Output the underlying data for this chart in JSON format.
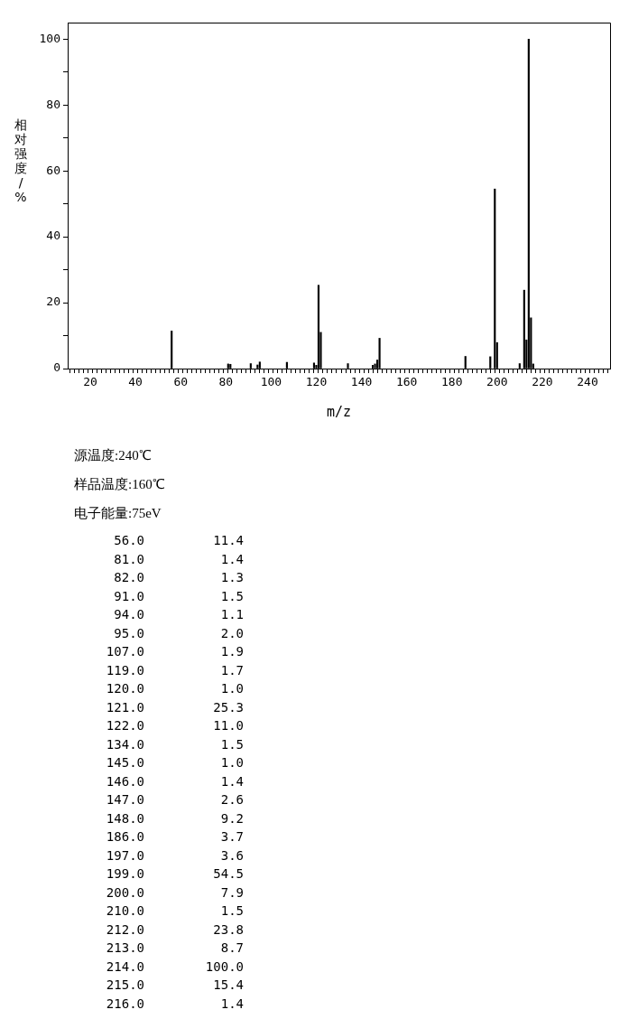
{
  "chart_data": [
    {
      "type": "bar",
      "xlabel": "m/z",
      "ylabel": "相对强度/%",
      "annotations": [
        "源温度:240℃",
        "样品温度:160℃",
        "电子能量:75eV"
      ],
      "x": [
        56,
        81,
        82,
        91,
        94,
        95,
        107,
        119,
        120,
        121,
        122,
        134,
        145,
        146,
        147,
        148,
        186,
        197,
        199,
        200,
        210,
        212,
        213,
        214,
        215,
        216
      ],
      "values": [
        11.4,
        1.4,
        1.3,
        1.5,
        1.1,
        2.0,
        1.9,
        1.7,
        1.0,
        25.3,
        11.0,
        1.5,
        1.0,
        1.4,
        2.6,
        9.2,
        3.7,
        3.6,
        54.5,
        7.9,
        1.5,
        23.8,
        8.7,
        100.0,
        15.4,
        1.4
      ],
      "color": "#000000",
      "grid": false,
      "legend": false,
      "xlim": [
        10,
        250
      ],
      "ylim": [
        0,
        105
      ],
      "xticks": [
        {
          "value": 10,
          "label": null
        },
        {
          "value": 12,
          "label": null
        },
        {
          "value": 14,
          "label": null
        },
        {
          "value": 16,
          "label": null
        },
        {
          "value": 18,
          "label": null
        },
        20,
        {
          "value": 22,
          "label": null
        },
        {
          "value": 24,
          "label": null
        },
        {
          "value": 26,
          "label": null
        },
        {
          "value": 28,
          "label": null
        },
        {
          "value": 30,
          "label": null
        },
        {
          "value": 32,
          "label": null
        },
        {
          "value": 34,
          "label": null
        },
        {
          "value": 36,
          "label": null
        },
        {
          "value": 38,
          "label": null
        },
        40,
        {
          "value": 42,
          "label": null
        },
        {
          "value": 44,
          "label": null
        },
        {
          "value": 46,
          "label": null
        },
        {
          "value": 48,
          "label": null
        },
        {
          "value": 50,
          "label": null
        },
        {
          "value": 52,
          "label": null
        },
        {
          "value": 54,
          "label": null
        },
        {
          "value": 56,
          "label": null
        },
        {
          "value": 58,
          "label": null
        },
        60,
        {
          "value": 62,
          "label": null
        },
        {
          "value": 64,
          "label": null
        },
        {
          "value": 66,
          "label": null
        },
        {
          "value": 68,
          "label": null
        },
        {
          "value": 70,
          "label": null
        },
        {
          "value": 72,
          "label": null
        },
        {
          "value": 74,
          "label": null
        },
        {
          "value": 76,
          "label": null
        },
        {
          "value": 78,
          "label": null
        },
        80,
        {
          "value": 82,
          "label": null
        },
        {
          "value": 84,
          "label": null
        },
        {
          "value": 86,
          "label": null
        },
        {
          "value": 88,
          "label": null
        },
        {
          "value": 90,
          "label": null
        },
        {
          "value": 92,
          "label": null
        },
        {
          "value": 94,
          "label": null
        },
        {
          "value": 96,
          "label": null
        },
        {
          "value": 98,
          "label": null
        },
        100,
        {
          "value": 102,
          "label": null
        },
        {
          "value": 104,
          "label": null
        },
        {
          "value": 106,
          "label": null
        },
        {
          "value": 108,
          "label": null
        },
        {
          "value": 110,
          "label": null
        },
        {
          "value": 112,
          "label": null
        },
        {
          "value": 114,
          "label": null
        },
        {
          "value": 116,
          "label": null
        },
        {
          "value": 118,
          "label": null
        },
        120,
        {
          "value": 122,
          "label": null
        },
        {
          "value": 124,
          "label": null
        },
        {
          "value": 126,
          "label": null
        },
        {
          "value": 128,
          "label": null
        },
        {
          "value": 130,
          "label": null
        },
        {
          "value": 132,
          "label": null
        },
        {
          "value": 134,
          "label": null
        },
        {
          "value": 136,
          "label": null
        },
        {
          "value": 138,
          "label": null
        },
        140,
        {
          "value": 142,
          "label": null
        },
        {
          "value": 144,
          "label": null
        },
        {
          "value": 146,
          "label": null
        },
        {
          "value": 148,
          "label": null
        },
        {
          "value": 150,
          "label": null
        },
        {
          "value": 152,
          "label": null
        },
        {
          "value": 154,
          "label": null
        },
        {
          "value": 156,
          "label": null
        },
        {
          "value": 158,
          "label": null
        },
        160,
        {
          "value": 162,
          "label": null
        },
        {
          "value": 164,
          "label": null
        },
        {
          "value": 166,
          "label": null
        },
        {
          "value": 168,
          "label": null
        },
        {
          "value": 170,
          "label": null
        },
        {
          "value": 172,
          "label": null
        },
        {
          "value": 174,
          "label": null
        },
        {
          "value": 176,
          "label": null
        },
        {
          "value": 178,
          "label": null
        },
        180,
        {
          "value": 182,
          "label": null
        },
        {
          "value": 184,
          "label": null
        },
        {
          "value": 186,
          "label": null
        },
        {
          "value": 188,
          "label": null
        },
        {
          "value": 190,
          "label": null
        },
        {
          "value": 192,
          "label": null
        },
        {
          "value": 194,
          "label": null
        },
        {
          "value": 196,
          "label": null
        },
        {
          "value": 198,
          "label": null
        },
        200,
        {
          "value": 202,
          "label": null
        },
        {
          "value": 204,
          "label": null
        },
        {
          "value": 206,
          "label": null
        },
        {
          "value": 208,
          "label": null
        },
        {
          "value": 210,
          "label": null
        },
        {
          "value": 212,
          "label": null
        },
        {
          "value": 214,
          "label": null
        },
        {
          "value": 216,
          "label": null
        },
        {
          "value": 218,
          "label": null
        },
        220,
        {
          "value": 222,
          "label": null
        },
        {
          "value": 224,
          "label": null
        },
        {
          "value": 226,
          "label": null
        },
        {
          "value": 228,
          "label": null
        },
        {
          "value": 230,
          "label": null
        },
        {
          "value": 232,
          "label": null
        },
        {
          "value": 234,
          "label": null
        },
        {
          "value": 236,
          "label": null
        },
        {
          "value": 238,
          "label": null
        },
        240,
        {
          "value": 242,
          "label": null
        },
        {
          "value": 244,
          "label": null
        },
        {
          "value": 246,
          "label": null
        },
        {
          "value": 248,
          "label": null
        },
        {
          "value": 250,
          "label": null
        }
      ],
      "yticks": [
        0,
        {
          "value": 10,
          "label": null
        },
        20,
        {
          "value": 30,
          "label": null
        },
        40,
        {
          "value": 50,
          "label": null
        },
        60,
        {
          "value": 70,
          "label": null
        },
        80,
        {
          "value": 90,
          "label": null
        },
        100
      ]
    },
    {
      "type": "other",
      "categories": [
        "56.0",
        "81.0",
        "82.0",
        "91.0",
        "94.0",
        "95.0",
        "107.0",
        "119.0",
        "120.0",
        "121.0",
        "122.0",
        "134.0",
        "145.0",
        "146.0",
        "147.0",
        "148.0",
        "186.0",
        "197.0",
        "199.0",
        "200.0",
        "210.0",
        "212.0",
        "213.0",
        "214.0",
        "215.0",
        "216.0"
      ],
      "values": [
        11.4,
        1.4,
        1.3,
        1.5,
        1.1,
        2.0,
        1.9,
        1.7,
        1.0,
        25.3,
        11.0,
        1.5,
        1.0,
        1.4,
        2.6,
        9.2,
        3.7,
        3.6,
        54.5,
        7.9,
        1.5,
        23.8,
        8.7,
        100.0,
        15.4,
        1.4
      ],
      "value_labels": [
        "11.4",
        "1.4",
        "1.3",
        "1.5",
        "1.1",
        "2.0",
        "1.9",
        "1.7",
        "1.0",
        "25.3",
        "11.0",
        "1.5",
        "1.0",
        "1.4",
        "2.6",
        "9.2",
        "3.7",
        "3.6",
        "54.5",
        "7.9",
        "1.5",
        "23.8",
        "8.7",
        "100.0",
        "15.4",
        "1.4"
      ]
    }
  ]
}
